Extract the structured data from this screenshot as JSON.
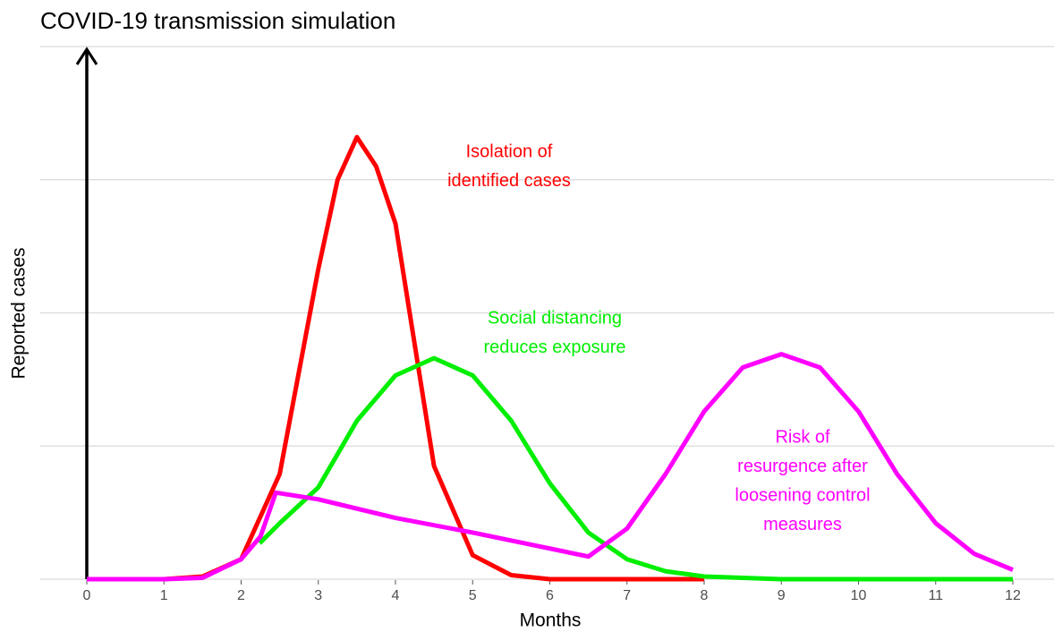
{
  "chart_data": {
    "type": "line",
    "title": "COVID-19 transmission simulation",
    "x_label": "Months",
    "y_label": "Reported cases",
    "xlim": [
      0,
      12
    ],
    "xticks": [
      0,
      1,
      2,
      3,
      4,
      5,
      6,
      7,
      8,
      9,
      10,
      11,
      12
    ],
    "ylim": [
      0,
      4
    ],
    "yticks": [
      0,
      1,
      2,
      3,
      4
    ],
    "y_tick_labels": false,
    "grid": true,
    "series": [
      {
        "color": "#ff0000",
        "x": [
          0,
          0.5,
          1,
          1.5,
          2,
          2.5,
          3,
          3.25,
          3.5,
          3.75,
          4,
          4.5,
          5,
          5.5,
          6,
          6.5,
          7,
          7.5,
          8
        ],
        "values": [
          0,
          0,
          0,
          0.02,
          0.15,
          0.79,
          2.33,
          3.0,
          3.32,
          3.1,
          2.67,
          0.85,
          0.18,
          0.03,
          0,
          0,
          0,
          0,
          0
        ]
      },
      {
        "color": "#00ee00",
        "x": [
          2.24,
          2.5,
          3,
          3.5,
          4,
          4.5,
          5,
          5.5,
          6,
          6.5,
          7,
          7.5,
          8,
          9,
          10,
          11,
          12
        ],
        "values": [
          0.27,
          0.42,
          0.69,
          1.19,
          1.53,
          1.66,
          1.53,
          1.19,
          0.72,
          0.35,
          0.15,
          0.06,
          0.02,
          0,
          0,
          0,
          0
        ]
      },
      {
        "color": "#ff00ff",
        "x": [
          0,
          0.5,
          1,
          1.5,
          2,
          2.25,
          2.45,
          3,
          4,
          5,
          6.5,
          7,
          7.5,
          8,
          8.5,
          9,
          9.5,
          10,
          10.5,
          11,
          11.5,
          12
        ],
        "values": [
          0,
          0,
          0,
          0.01,
          0.15,
          0.32,
          0.65,
          0.6,
          0.46,
          0.35,
          0.17,
          0.38,
          0.79,
          1.26,
          1.59,
          1.69,
          1.59,
          1.26,
          0.79,
          0.42,
          0.19,
          0.07
        ]
      }
    ],
    "annotations": [
      {
        "lines": [
          "Isolation of",
          "identified cases"
        ],
        "color": "#ff0000"
      },
      {
        "lines": [
          "Social distancing",
          "reduces exposure"
        ],
        "color": "#00ee00"
      },
      {
        "lines": [
          "Risk of",
          "resurgence after",
          "loosening control",
          "measures"
        ],
        "color": "#ff00ff"
      }
    ]
  }
}
